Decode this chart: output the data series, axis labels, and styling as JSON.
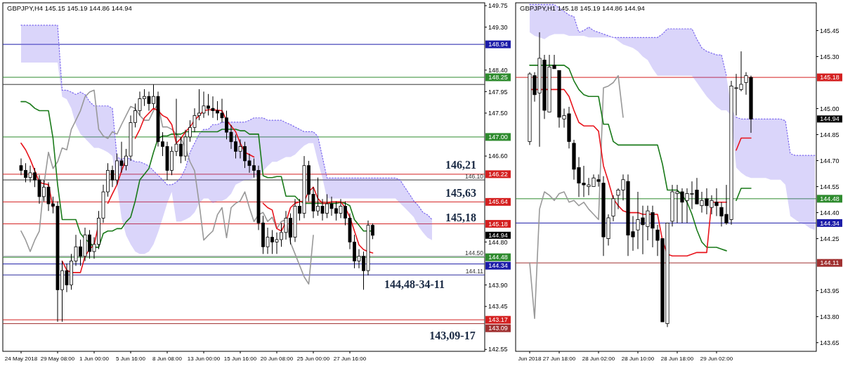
{
  "chart_data": [
    {
      "type": "candlestick",
      "title": "GBPJPY,H4  145.15 145.19 144.86 144.94",
      "categories": [
        "24 May 2018",
        null,
        null,
        null,
        null,
        null,
        null,
        null,
        "29 May 08:00",
        null,
        null,
        null,
        null,
        null,
        null,
        null,
        "1 Jun 00:00",
        null,
        null,
        null,
        null,
        null,
        null,
        null,
        "5 Jun 16:00",
        null,
        null,
        null,
        null,
        null,
        null,
        null,
        "8 Jun 08:00",
        null,
        null,
        null,
        null,
        null,
        null,
        null,
        "13 Jun 00:00",
        null,
        null,
        null,
        null,
        null,
        null,
        null,
        "15 Jun 16:00",
        null,
        null,
        null,
        null,
        null,
        null,
        null,
        "20 Jun 08:00",
        null,
        null,
        null,
        null,
        null,
        null,
        null,
        "25 Jun 00:00",
        null,
        null,
        null,
        null,
        null,
        null,
        null,
        "27 Jun 16:00",
        null,
        null,
        null,
        null,
        null,
        null,
        null,
        null,
        null,
        null,
        null,
        null,
        null,
        null,
        null,
        null,
        null,
        null
      ],
      "ohlc": [
        [
          146.4,
          146.55,
          146.2,
          146.3
        ],
        [
          146.3,
          146.45,
          146.05,
          146.15
        ],
        [
          146.15,
          146.4,
          146.05,
          146.25
        ],
        [
          146.25,
          146.35,
          145.95,
          146.1
        ],
        [
          146.1,
          146.2,
          145.6,
          145.75
        ],
        [
          145.75,
          146.1,
          145.65,
          145.95
        ],
        [
          145.95,
          146.05,
          145.45,
          145.6
        ],
        [
          145.6,
          145.75,
          145.4,
          145.55
        ],
        [
          145.55,
          145.65,
          143.13,
          143.8
        ],
        [
          143.8,
          144.4,
          143.13,
          144.2
        ],
        [
          144.2,
          144.35,
          143.75,
          143.9
        ],
        [
          143.9,
          144.55,
          143.8,
          144.4
        ],
        [
          144.4,
          144.95,
          144.3,
          144.7
        ],
        [
          144.7,
          144.85,
          144.3,
          144.5
        ],
        [
          144.5,
          145.1,
          144.4,
          144.95
        ],
        [
          144.95,
          145.05,
          144.45,
          144.6
        ],
        [
          144.6,
          144.9,
          144.45,
          144.75
        ],
        [
          144.75,
          145.45,
          144.65,
          145.3
        ],
        [
          145.3,
          146.0,
          145.2,
          145.85
        ],
        [
          145.85,
          146.45,
          145.75,
          146.3
        ],
        [
          146.3,
          146.4,
          145.95,
          146.1
        ],
        [
          146.1,
          146.65,
          146.0,
          146.5
        ],
        [
          146.5,
          146.9,
          146.25,
          146.4
        ],
        [
          146.4,
          146.75,
          146.3,
          146.6
        ],
        [
          146.6,
          147.45,
          146.5,
          147.3
        ],
        [
          147.3,
          147.7,
          147.2,
          147.55
        ],
        [
          147.55,
          147.95,
          147.45,
          147.8
        ],
        [
          147.8,
          148.0,
          147.65,
          147.85
        ],
        [
          147.85,
          147.95,
          147.55,
          147.7
        ],
        [
          147.7,
          148.1,
          147.6,
          147.85
        ],
        [
          147.85,
          147.95,
          146.8,
          146.9
        ],
        [
          146.9,
          147.1,
          146.6,
          146.8
        ],
        [
          146.8,
          146.9,
          146.1,
          146.3
        ],
        [
          146.3,
          146.8,
          146.2,
          146.7
        ],
        [
          146.7,
          147.8,
          146.6,
          146.85
        ],
        [
          146.85,
          147.0,
          146.45,
          146.6
        ],
        [
          146.6,
          147.15,
          146.5,
          147.0
        ],
        [
          147.0,
          147.35,
          146.9,
          147.2
        ],
        [
          147.2,
          147.6,
          147.1,
          147.45
        ],
        [
          147.45,
          148.0,
          147.35,
          147.5
        ],
        [
          147.5,
          147.95,
          147.4,
          147.65
        ],
        [
          147.65,
          147.9,
          147.45,
          147.6
        ],
        [
          147.6,
          147.85,
          147.4,
          147.55
        ],
        [
          147.55,
          147.75,
          147.35,
          147.5
        ],
        [
          147.5,
          147.8,
          147.3,
          147.4
        ],
        [
          147.4,
          147.55,
          146.95,
          147.1
        ],
        [
          147.1,
          147.25,
          146.75,
          146.9
        ],
        [
          146.9,
          147.05,
          146.55,
          146.7
        ],
        [
          146.7,
          146.95,
          146.55,
          146.8
        ],
        [
          146.8,
          146.9,
          146.35,
          146.5
        ],
        [
          146.5,
          146.65,
          146.25,
          146.4
        ],
        [
          146.4,
          146.55,
          146.15,
          146.3
        ],
        [
          146.3,
          146.4,
          145.05,
          145.2
        ],
        [
          145.2,
          145.35,
          144.55,
          144.7
        ],
        [
          144.7,
          145.1,
          144.55,
          144.9
        ],
        [
          144.9,
          145.05,
          144.55,
          144.8
        ],
        [
          144.8,
          145.0,
          144.55,
          144.85
        ],
        [
          144.85,
          145.2,
          144.7,
          145.0
        ],
        [
          145.0,
          145.45,
          144.85,
          145.3
        ],
        [
          145.3,
          145.4,
          144.75,
          144.9
        ],
        [
          144.9,
          145.7,
          144.8,
          145.55
        ],
        [
          145.55,
          145.7,
          145.25,
          145.4
        ],
        [
          145.4,
          146.6,
          145.3,
          146.4
        ],
        [
          146.4,
          146.5,
          145.65,
          145.8
        ],
        [
          145.8,
          145.95,
          145.3,
          145.45
        ],
        [
          145.45,
          146.15,
          145.35,
          145.55
        ],
        [
          145.55,
          145.7,
          145.25,
          145.4
        ],
        [
          145.4,
          145.8,
          145.3,
          145.6
        ],
        [
          145.6,
          145.75,
          145.35,
          145.5
        ],
        [
          145.5,
          145.65,
          145.25,
          145.4
        ],
        [
          145.4,
          145.7,
          145.3,
          145.55
        ],
        [
          145.55,
          145.65,
          145.15,
          145.3
        ],
        [
          145.3,
          145.4,
          144.65,
          144.8
        ],
        [
          144.8,
          144.95,
          144.25,
          144.4
        ],
        [
          144.4,
          144.65,
          144.25,
          144.5
        ],
        [
          144.5,
          144.6,
          143.8,
          144.2
        ],
        [
          144.2,
          145.25,
          144.1,
          145.15
        ],
        [
          145.15,
          145.19,
          144.86,
          144.94
        ],
        null,
        null,
        null,
        null,
        null,
        null,
        null,
        null,
        null,
        null,
        null,
        null,
        null
      ],
      "series": [
        {
          "type": "line",
          "line_style": "dotted",
          "color": "#7b68ee",
          "values": [
            149.34,
            149.34,
            149.34,
            149.34,
            149.34,
            149.34,
            149.34,
            149.34,
            149.34,
            147.98,
            147.98,
            147.94,
            147.89,
            147.94,
            147.89,
            147.74,
            147.65,
            147.65,
            147.65,
            147.65,
            147.6,
            146.58,
            146.53,
            146.58,
            146.53,
            146.48,
            146.48,
            146.44,
            146.39,
            146.29,
            146.2,
            146.1,
            146.0,
            146.0,
            146.05,
            146.15,
            146.34,
            146.68,
            146.87,
            147.06,
            147.16,
            147.16,
            147.26,
            147.26,
            147.31,
            147.31,
            147.31,
            147.31,
            147.31,
            147.31,
            147.35,
            147.4,
            147.4,
            147.4,
            147.35,
            147.35,
            147.35,
            147.35,
            147.3,
            147.26,
            147.21,
            147.16,
            147.11,
            147.11,
            147.11,
            147.01,
            146.58,
            146.14,
            146.14,
            146.14,
            146.14,
            146.14,
            146.14,
            146.14,
            146.14,
            146.14,
            146.14,
            146.14,
            146.14,
            146.14,
            146.14,
            146.14,
            146.14,
            146.1,
            145.95,
            145.81,
            145.66,
            145.56,
            145.42,
            145.37,
            145.27
          ],
          "upper": [
            149.34,
            149.34,
            149.34,
            149.34,
            149.34,
            149.34,
            149.34,
            149.34,
            149.34,
            147.98,
            147.98,
            147.94,
            147.89,
            147.94,
            147.89,
            147.74,
            147.65,
            147.65,
            147.65,
            147.65,
            147.6,
            146.58,
            146.53,
            146.58,
            146.53,
            146.48,
            146.48,
            146.44,
            146.39,
            146.29,
            146.2,
            146.1,
            146.0,
            146.0,
            146.05,
            146.15,
            146.34,
            146.68,
            146.87,
            147.06,
            147.16,
            147.16,
            147.26,
            147.26,
            147.31,
            147.31,
            147.31,
            147.31,
            147.31,
            147.31,
            147.35,
            147.4,
            147.4,
            147.4,
            147.35,
            147.35,
            147.35,
            147.35,
            147.3,
            147.26,
            147.21,
            147.16,
            147.11,
            147.11,
            147.11,
            147.01,
            146.58,
            146.14,
            146.14,
            146.14,
            146.14,
            146.14,
            146.14,
            146.14,
            146.14,
            146.14,
            146.14,
            146.14,
            146.14,
            146.14,
            146.14,
            146.14,
            146.14,
            146.1,
            145.95,
            145.81,
            145.66,
            145.56,
            145.42,
            145.37,
            145.27
          ],
          "lower": [
            148.56,
            148.56,
            148.56,
            148.56,
            148.56,
            148.56,
            148.56,
            148.56,
            148.56,
            147.84,
            147.79,
            147.6,
            147.26,
            147.06,
            146.97,
            146.87,
            146.77,
            146.77,
            146.73,
            146.68,
            146.6,
            146.0,
            145.3,
            144.94,
            144.75,
            144.6,
            144.55,
            144.55,
            144.6,
            144.75,
            145.0,
            145.3,
            145.61,
            145.85,
            145.23,
            145.23,
            145.27,
            145.32,
            145.42,
            145.61,
            145.71,
            145.71,
            145.61,
            145.66,
            145.66,
            145.71,
            145.81,
            146.0,
            146.05,
            146.1,
            146.1,
            146.14,
            146.19,
            146.29,
            146.39,
            146.48,
            146.48,
            146.53,
            146.58,
            146.58,
            146.63,
            146.73,
            146.82,
            146.87,
            146.87,
            146.48,
            146.14,
            145.71,
            145.71,
            145.71,
            145.71,
            145.71,
            145.71,
            145.71,
            145.71,
            145.71,
            145.71,
            145.71,
            145.71,
            145.71,
            145.71,
            145.71,
            145.71,
            145.61,
            145.52,
            145.42,
            145.32,
            145.13,
            145.0,
            144.89,
            144.84
          ]
        },
        {
          "type": "line",
          "color": "#999999",
          "values": [
            145.03,
            144.84,
            144.6,
            144.84,
            145.03,
            146.0,
            146.68,
            146.34,
            146.48,
            146.77,
            146.73,
            147.16,
            147.35,
            147.55,
            147.84,
            147.94,
            147.98,
            147.16,
            147.02,
            146.97,
            147.11,
            147.06,
            147.26,
            147.45,
            147.64,
            147.6,
            147.45,
            147.35,
            147.35,
            147.55,
            147.69,
            147.21,
            147.21,
            147.16,
            147.06,
            146.97,
            146.77,
            146.48,
            146.29,
            145.61,
            144.84,
            144.94,
            145.03,
            145.37,
            145.52,
            144.89,
            145.52,
            145.61,
            145.66,
            145.85,
            145.52,
            145.23,
            145.37,
            145.42,
            145.23,
            145.32,
            145.08,
            145.23,
            145.27,
            144.79,
            144.55,
            144.31,
            144.07,
            143.92,
            144.94,
            null,
            null,
            null,
            null,
            null,
            null,
            null,
            null,
            null,
            null,
            null,
            null,
            null,
            null,
            null,
            null,
            null,
            null,
            null,
            null,
            null,
            null,
            null,
            null,
            null,
            null
          ]
        },
        {
          "type": "line",
          "color": "#1a7a1a",
          "values": [
            147.74,
            147.74,
            147.69,
            147.6,
            147.55,
            147.55,
            147.55,
            146.97,
            146.0,
            145.27,
            145.27,
            145.27,
            145.27,
            144.98,
            144.86,
            144.79,
            144.69,
            144.69,
            144.98,
            145.03,
            145.03,
            145.08,
            145.08,
            145.22,
            145.32,
            145.66,
            146.1,
            146.22,
            146.34,
            146.68,
            146.97,
            147.02,
            147.02,
            147.06,
            147.06,
            147.06,
            147.11,
            147.11,
            147.11,
            147.11,
            147.11,
            147.11,
            147.11,
            147.11,
            147.16,
            147.16,
            147.16,
            147.16,
            147.13,
            147.13,
            147.06,
            147.06,
            147.06,
            146.19,
            146.15,
            146.15,
            146.17,
            146.17,
            145.76,
            145.76,
            145.76,
            145.66,
            145.61,
            145.61,
            145.61,
            145.61,
            145.61,
            145.61,
            145.61,
            145.61,
            145.63,
            145.61,
            145.56,
            145.27,
            145.15,
            145.03,
            145.03,
            145.03,
            null,
            null,
            null,
            null,
            null,
            null,
            null,
            null,
            null,
            null,
            null,
            null,
            null
          ]
        },
        {
          "type": "line",
          "color": "#e8141c",
          "values": [
            146.87,
            146.73,
            146.53,
            146.29,
            146.05,
            146.02,
            146.0,
            145.52,
            null,
            144.4,
            144.21,
            144.16,
            144.16,
            144.16,
            144.5,
            144.65,
            144.74,
            145.18,
            null,
            145.61,
            145.81,
            146.0,
            146.29,
            146.53,
            null,
            146.97,
            147.16,
            147.4,
            147.5,
            147.6,
            147.55,
            147.45,
            147.4,
            147.26,
            146.87,
            146.97,
            147.11,
            147.21,
            147.35,
            147.45,
            147.55,
            147.57,
            147.57,
            147.56,
            147.55,
            147.35,
            147.23,
            147.11,
            146.87,
            146.68,
            146.63,
            146.58,
            null,
            145.61,
            145.52,
            145.47,
            145.08,
            145.03,
            145.22,
            145.52,
            145.61,
            145.64,
            145.66,
            145.85,
            145.95,
            145.71,
            145.61,
            145.61,
            145.64,
            145.64,
            145.64,
            145.52,
            145.32,
            145.03,
            144.74,
            144.64,
            144.6,
            144.57,
            null,
            null,
            null,
            null,
            null,
            null,
            null,
            null,
            null,
            null,
            null,
            null,
            null
          ]
        }
      ],
      "ref_lines": [
        {
          "axis": "y",
          "value": 148.94,
          "label": "148.94",
          "color": "#1c1ca8"
        },
        {
          "axis": "y",
          "value": 148.25,
          "label": "148.25",
          "color": "#2e8b2e"
        },
        {
          "axis": "y",
          "value": 148.1,
          "color": "#333333"
        },
        {
          "axis": "y",
          "value": 147.0,
          "label": "147.00",
          "color": "#2e8b2e"
        },
        {
          "axis": "y",
          "value": 146.22,
          "label": "146.22",
          "color": "#d42020"
        },
        {
          "axis": "y",
          "value": 146.1,
          "color": "#333333"
        },
        {
          "axis": "y",
          "value": 145.64,
          "label": "145.64",
          "color": "#d42020"
        },
        {
          "axis": "y",
          "value": 145.18,
          "label": "145.18",
          "color": "#d42020"
        },
        {
          "axis": "y",
          "value": 144.5,
          "color": "#8c8c9c"
        },
        {
          "axis": "y",
          "value": 144.48,
          "label": "144.48",
          "color": "#2e8b2e"
        },
        {
          "axis": "y",
          "value": 144.34,
          "label": "144.34",
          "color": "#1c1ca8"
        },
        {
          "axis": "y",
          "value": 144.11,
          "color": "#3030a0"
        },
        {
          "axis": "y",
          "value": 143.17,
          "label": "143.17",
          "color": "#d42020"
        },
        {
          "axis": "y",
          "value": 143.09,
          "label": "143.09",
          "color": "#a03030"
        }
      ],
      "annotations": [
        "146,21",
        "145,63",
        "145,18",
        "144,48-34-11",
        "143,09-17",
        "144.94",
        {
          "text": "146.10",
          "y": 146.1
        },
        {
          "text": "144.50",
          "y": 144.5
        },
        {
          "text": "144.11",
          "y": 144.11
        }
      ],
      "ylim": [
        142.51,
        149.81
      ],
      "yticks": [
        142.55,
        143.45,
        {
          "value": 143.9,
          "label": "143.90"
        },
        {
          "value": 144.8,
          "label": "144.80"
        },
        {
          "value": 146.6,
          "label": "146.60"
        },
        {
          "value": 147.5,
          "label": "147.50"
        },
        147.95,
        {
          "value": 148.4,
          "label": "148.40"
        },
        {
          "value": 149.3,
          "label": "149.30"
        },
        149.75
      ]
    },
    {
      "type": "candlestick",
      "title": "GBPJPY,H1  145.18 145.19 144.86 144.94",
      "categories": [
        "Jun 2018",
        null,
        null,
        null,
        null,
        null,
        "27 Jun 18:00",
        null,
        null,
        null,
        null,
        null,
        null,
        null,
        "28 Jun 02:00",
        null,
        null,
        null,
        null,
        null,
        null,
        null,
        "28 Jun 10:00",
        null,
        null,
        null,
        null,
        null,
        null,
        null,
        "28 Jun 18:00",
        null,
        null,
        null,
        null,
        null,
        null,
        null,
        "29 Jun 02:00",
        null,
        null,
        null,
        null,
        null,
        null,
        null,
        null,
        null,
        null,
        null,
        null,
        null,
        null,
        null,
        null,
        null,
        null,
        null,
        null
      ],
      "ohlc": [
        [
          144.81,
          145.21,
          144.79,
          145.2
        ],
        [
          145.19,
          145.21,
          145.04,
          145.08
        ],
        [
          145.09,
          145.44,
          144.78,
          145.29
        ],
        [
          145.28,
          145.31,
          144.94,
          144.99
        ],
        [
          144.98,
          145.31,
          144.98,
          145.24
        ],
        [
          145.25,
          145.31,
          145.23,
          145.23
        ],
        [
          145.22,
          145.22,
          144.89,
          144.95
        ],
        [
          144.94,
          145.0,
          144.89,
          144.96
        ],
        [
          144.97,
          145.01,
          144.77,
          144.81
        ],
        [
          144.8,
          144.82,
          144.59,
          144.65
        ],
        [
          144.66,
          144.72,
          144.49,
          144.57
        ],
        [
          144.57,
          144.67,
          144.49,
          144.56
        ],
        [
          144.55,
          144.6,
          144.5,
          144.56
        ],
        [
          144.55,
          144.62,
          144.55,
          144.6
        ],
        [
          144.59,
          144.62,
          144.55,
          144.58
        ],
        [
          144.57,
          144.61,
          144.15,
          144.26
        ],
        [
          144.25,
          144.39,
          144.21,
          144.37
        ],
        [
          144.38,
          144.5,
          144.35,
          144.48
        ],
        [
          144.5,
          144.54,
          144.42,
          144.53
        ],
        [
          144.53,
          144.62,
          144.47,
          144.59
        ],
        [
          144.58,
          144.62,
          144.15,
          144.27
        ],
        [
          144.29,
          144.38,
          144.18,
          144.26
        ],
        [
          144.3,
          144.52,
          144.19,
          144.36
        ],
        [
          144.37,
          144.44,
          144.16,
          144.33
        ],
        [
          144.32,
          144.44,
          144.24,
          144.41
        ],
        [
          144.4,
          144.44,
          144.2,
          144.31
        ],
        [
          144.3,
          144.33,
          144.15,
          144.24
        ],
        [
          144.25,
          144.25,
          143.77,
          143.77
        ],
        [
          143.76,
          144.34,
          143.74,
          144.34
        ],
        [
          144.35,
          144.56,
          144.32,
          144.52
        ],
        [
          144.51,
          144.56,
          144.34,
          144.52
        ],
        [
          144.52,
          144.54,
          144.34,
          144.46
        ],
        [
          144.47,
          144.54,
          144.34,
          144.51
        ],
        [
          144.51,
          144.58,
          144.42,
          144.51
        ],
        [
          144.53,
          144.6,
          144.45,
          144.45
        ],
        [
          144.44,
          144.52,
          144.4,
          144.47
        ],
        [
          144.48,
          144.54,
          144.39,
          144.44
        ],
        [
          144.43,
          144.5,
          144.39,
          144.47
        ],
        [
          144.46,
          144.54,
          144.38,
          144.44
        ],
        [
          144.43,
          144.46,
          144.32,
          144.38
        ],
        [
          144.39,
          144.56,
          144.33,
          144.34
        ],
        [
          144.36,
          145.16,
          144.33,
          145.13
        ],
        [
          145.12,
          145.2,
          144.96,
          145.12
        ],
        [
          145.11,
          145.33,
          145.1,
          145.14
        ],
        [
          145.15,
          145.21,
          145.08,
          145.19
        ],
        [
          145.18,
          145.19,
          144.86,
          144.94
        ],
        null,
        null,
        null,
        null,
        null,
        null,
        null,
        null,
        null,
        null,
        null,
        null,
        null
      ],
      "series": [
        {
          "type": "line",
          "line_style": "dotted",
          "color": "#7b68ee",
          "values": [
            145.6,
            145.6,
            145.6,
            145.6,
            145.6,
            145.6,
            145.58,
            145.56,
            145.54,
            145.53,
            145.44,
            145.45,
            145.47,
            145.45,
            145.44,
            145.43,
            145.42,
            145.41,
            145.41,
            145.41,
            145.41,
            145.41,
            145.41,
            145.41,
            145.41,
            145.41,
            145.41,
            145.43,
            145.46,
            145.46,
            145.46,
            145.46,
            145.46,
            145.46,
            145.4,
            145.35,
            145.33,
            145.32,
            145.31,
            145.31,
            145.19,
            null,
            144.95,
            144.94,
            144.94,
            144.94,
            144.94,
            144.94,
            144.94,
            144.94,
            144.94,
            144.94,
            144.93,
            144.74,
            144.73,
            144.73,
            144.73,
            144.73,
            144.73
          ],
          "upper": [
            145.6,
            145.6,
            145.6,
            145.6,
            145.6,
            145.6,
            145.58,
            145.56,
            145.54,
            145.53,
            145.44,
            145.45,
            145.47,
            145.45,
            145.44,
            145.43,
            145.42,
            145.41,
            145.41,
            145.41,
            145.41,
            145.41,
            145.41,
            145.41,
            145.41,
            145.41,
            145.41,
            145.43,
            145.46,
            145.46,
            145.46,
            145.46,
            145.46,
            145.46,
            145.4,
            145.35,
            145.33,
            145.32,
            145.31,
            145.31,
            145.19,
            145.0,
            144.95,
            144.94,
            144.94,
            144.94,
            144.94,
            144.94,
            144.94,
            144.94,
            144.94,
            144.94,
            144.93,
            144.74,
            144.73,
            144.73,
            144.73,
            144.73,
            144.73
          ],
          "lower": [
            145.44,
            145.42,
            145.41,
            145.4,
            145.42,
            145.43,
            145.43,
            145.43,
            145.42,
            145.42,
            145.42,
            145.42,
            145.41,
            145.41,
            145.41,
            145.41,
            145.41,
            145.41,
            145.39,
            145.37,
            145.36,
            145.35,
            145.33,
            145.3,
            145.28,
            145.23,
            145.19,
            145.19,
            145.19,
            145.19,
            145.19,
            145.19,
            145.19,
            145.19,
            145.15,
            145.11,
            145.07,
            145.04,
            145.01,
            144.99,
            144.99,
            144.96,
            144.66,
            144.63,
            144.61,
            144.6,
            144.6,
            144.6,
            144.6,
            144.59,
            144.59,
            144.59,
            144.56,
            144.38,
            144.36,
            144.34,
            144.33,
            144.31,
            144.3
          ]
        },
        {
          "type": "line",
          "color": "#999999",
          "values": [
            144.11,
            143.79,
            144.42,
            144.52,
            144.5,
            144.47,
            144.51,
            144.52,
            144.46,
            144.47,
            144.44,
            144.46,
            144.42,
            144.39,
            144.36,
            145.12,
            145.13,
            145.15,
            145.19,
            144.95,
            null,
            null,
            null,
            null,
            null,
            null,
            null,
            null,
            null,
            null,
            null,
            null,
            null,
            null,
            null,
            null,
            null,
            null,
            null,
            null,
            null,
            null,
            null,
            null,
            null,
            null,
            null,
            null,
            null,
            null,
            null,
            null,
            null,
            null,
            null,
            null,
            null,
            null,
            null
          ]
        },
        {
          "type": "line",
          "color": "#1a7a1a",
          "values": [
            145.25,
            145.25,
            145.25,
            145.25,
            145.25,
            145.25,
            145.25,
            145.25,
            145.23,
            145.16,
            145.11,
            145.08,
            145.07,
            145.07,
            145.07,
            144.91,
            144.91,
            144.81,
            144.79,
            144.79,
            144.79,
            144.79,
            144.79,
            144.79,
            144.79,
            144.79,
            144.79,
            144.68,
            144.53,
            144.53,
            144.53,
            144.5,
            144.46,
            144.39,
            144.3,
            144.23,
            144.2,
            144.2,
            144.2,
            144.19,
            144.18,
            null,
            144.47,
            144.54,
            144.54,
            144.54,
            null,
            null,
            null,
            null,
            null,
            null,
            null,
            null,
            null,
            null,
            null,
            null,
            null
          ]
        },
        {
          "type": "line",
          "color": "#e8141c",
          "values": [
            145.11,
            145.11,
            145.11,
            145.11,
            145.11,
            145.11,
            145.11,
            145.11,
            145.07,
            144.99,
            144.92,
            144.9,
            144.9,
            144.9,
            144.87,
            144.67,
            144.58,
            144.48,
            144.44,
            144.41,
            144.4,
            144.4,
            144.4,
            144.39,
            144.39,
            144.39,
            144.39,
            144.24,
            144.16,
            144.15,
            144.15,
            144.15,
            144.15,
            144.16,
            144.17,
            144.17,
            144.17,
            144.46,
            144.46,
            144.46,
            144.46,
            null,
            144.76,
            144.83,
            144.83,
            144.83,
            null,
            null,
            null,
            null,
            null,
            null,
            null,
            null,
            null,
            null,
            null,
            null,
            null
          ]
        }
      ],
      "ref_lines": [
        {
          "axis": "y",
          "value": 145.18,
          "label": "145.18",
          "color": "#d42020"
        },
        {
          "axis": "y",
          "value": 144.48,
          "label": "144.48",
          "color": "#2e8b2e"
        },
        {
          "axis": "y",
          "value": 144.34,
          "label": "144.34",
          "color": "#1c1ca8"
        },
        {
          "axis": "y",
          "value": 144.11,
          "label": "144.11",
          "color": "#a03030"
        }
      ],
      "annotations": [
        "144.94"
      ],
      "ylim": [
        143.6,
        145.61
      ],
      "yticks": [
        143.65,
        {
          "value": 143.8,
          "label": "143.80"
        },
        143.95,
        144.25,
        {
          "value": 144.4,
          "label": "144.40"
        },
        144.55,
        {
          "value": 144.7,
          "label": "144.70"
        },
        144.85,
        {
          "value": 145.0,
          "label": "145.00"
        },
        {
          "value": 145.3,
          "label": "145.30"
        },
        145.45
      ]
    }
  ]
}
